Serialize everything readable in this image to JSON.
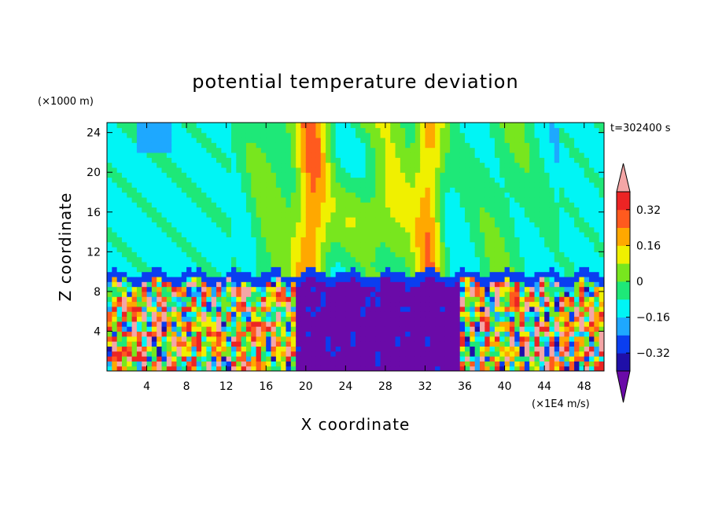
{
  "chart_data": {
    "type": "heatmap",
    "title": "potential temperature deviation",
    "xlabel": "X coordinate",
    "ylabel": "Z coordinate",
    "x_unit": "(×1E4 m/s)",
    "y_unit": "(×1000 m)",
    "time_label": "t=302400 s",
    "xlim": [
      0,
      50
    ],
    "ylim": [
      0,
      25
    ],
    "x_ticks": [
      4,
      8,
      12,
      16,
      20,
      24,
      28,
      32,
      36,
      40,
      44,
      48
    ],
    "y_ticks": [
      4,
      8,
      12,
      16,
      20,
      24
    ],
    "x_tick_labels": [
      "4",
      "8",
      "12",
      "16",
      "20",
      "24",
      "28",
      "32",
      "36",
      "40",
      "44",
      "48"
    ],
    "y_tick_labels": [
      "4",
      "8",
      "12",
      "16",
      "20",
      "24"
    ],
    "colorbar": {
      "levels": [
        -0.4,
        -0.32,
        -0.24,
        -0.16,
        -0.08,
        0,
        0.08,
        0.16,
        0.24,
        0.32,
        0.4
      ],
      "colors": [
        "#6a0aa8",
        "#1f0fa8",
        "#0a3ef0",
        "#1ea8ff",
        "#00f5f5",
        "#1ee878",
        "#78e61e",
        "#f0f000",
        "#ffa800",
        "#ff5a1e",
        "#ec2424",
        "#f4a6a6"
      ],
      "tick_values": [
        0.32,
        0.16,
        0,
        -0.16,
        -0.32
      ],
      "tick_labels": [
        "0.32",
        "0.16",
        "0",
        "−0.16",
        "−0.32"
      ],
      "extend": "both"
    },
    "field_description_regions": [
      {
        "name": "lower-turbulent-layer",
        "z_range": [
          0,
          8.5
        ]
      },
      {
        "name": "inversion-band",
        "z_range": [
          8.5,
          9.8
        ]
      },
      {
        "name": "upper-wave-region",
        "z_range": [
          9.8,
          25
        ]
      }
    ]
  }
}
